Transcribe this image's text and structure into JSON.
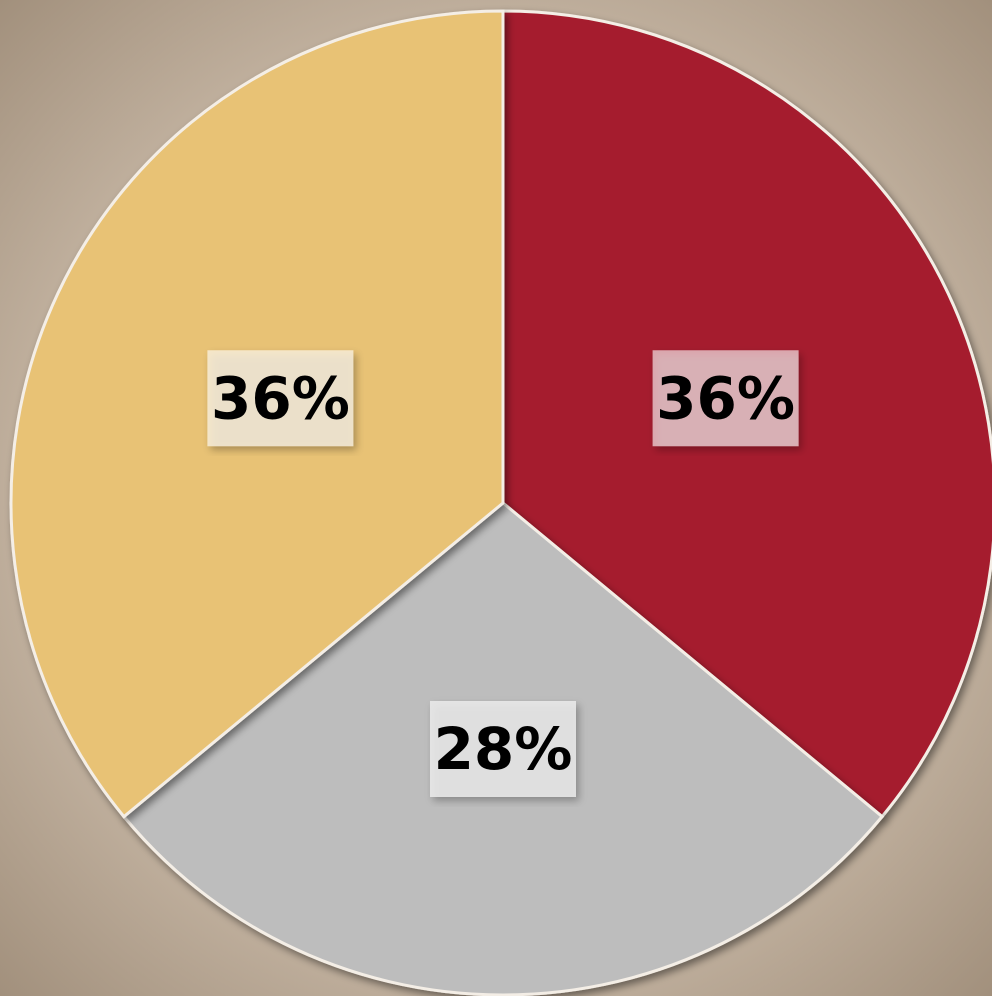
{
  "chart_data": {
    "type": "pie",
    "values": [
      36,
      28,
      36
    ],
    "value_labels": [
      "36%",
      "28%",
      "36%"
    ],
    "colors": [
      "#a51f2e",
      "#bdbdbd",
      "#e8c274"
    ]
  }
}
